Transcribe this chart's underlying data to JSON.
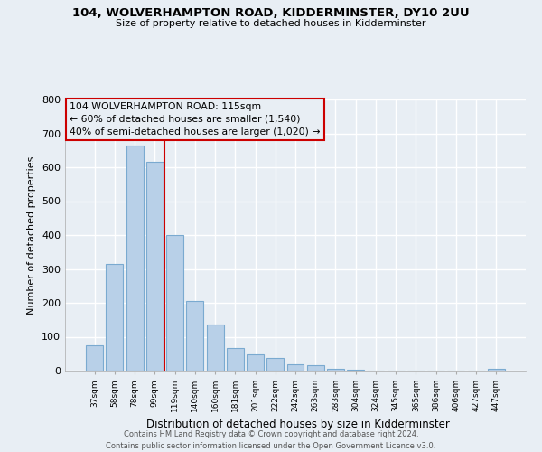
{
  "title": "104, WOLVERHAMPTON ROAD, KIDDERMINSTER, DY10 2UU",
  "subtitle": "Size of property relative to detached houses in Kidderminster",
  "xlabel": "Distribution of detached houses by size in Kidderminster",
  "ylabel": "Number of detached properties",
  "footer_line1": "Contains HM Land Registry data © Crown copyright and database right 2024.",
  "footer_line2": "Contains public sector information licensed under the Open Government Licence v3.0.",
  "bar_labels": [
    "37sqm",
    "58sqm",
    "78sqm",
    "99sqm",
    "119sqm",
    "140sqm",
    "160sqm",
    "181sqm",
    "201sqm",
    "222sqm",
    "242sqm",
    "263sqm",
    "283sqm",
    "304sqm",
    "324sqm",
    "345sqm",
    "365sqm",
    "386sqm",
    "406sqm",
    "427sqm",
    "447sqm"
  ],
  "bar_values": [
    75,
    315,
    665,
    615,
    400,
    205,
    137,
    68,
    47,
    37,
    20,
    15,
    5,
    2,
    1,
    0,
    0,
    0,
    0,
    0,
    5
  ],
  "bar_color": "#b8d0e8",
  "bar_edge_color": "#7aaad0",
  "ylim": [
    0,
    800
  ],
  "yticks": [
    0,
    100,
    200,
    300,
    400,
    500,
    600,
    700,
    800
  ],
  "annotation_line_color": "#cc0000",
  "annotation_box_text_line1": "104 WOLVERHAMPTON ROAD: 115sqm",
  "annotation_box_text_line2": "← 60% of detached houses are smaller (1,540)",
  "annotation_box_text_line3": "40% of semi-detached houses are larger (1,020) →",
  "bg_color": "#e8eef4",
  "grid_color": "#ffffff",
  "spine_color": "#aaaaaa"
}
